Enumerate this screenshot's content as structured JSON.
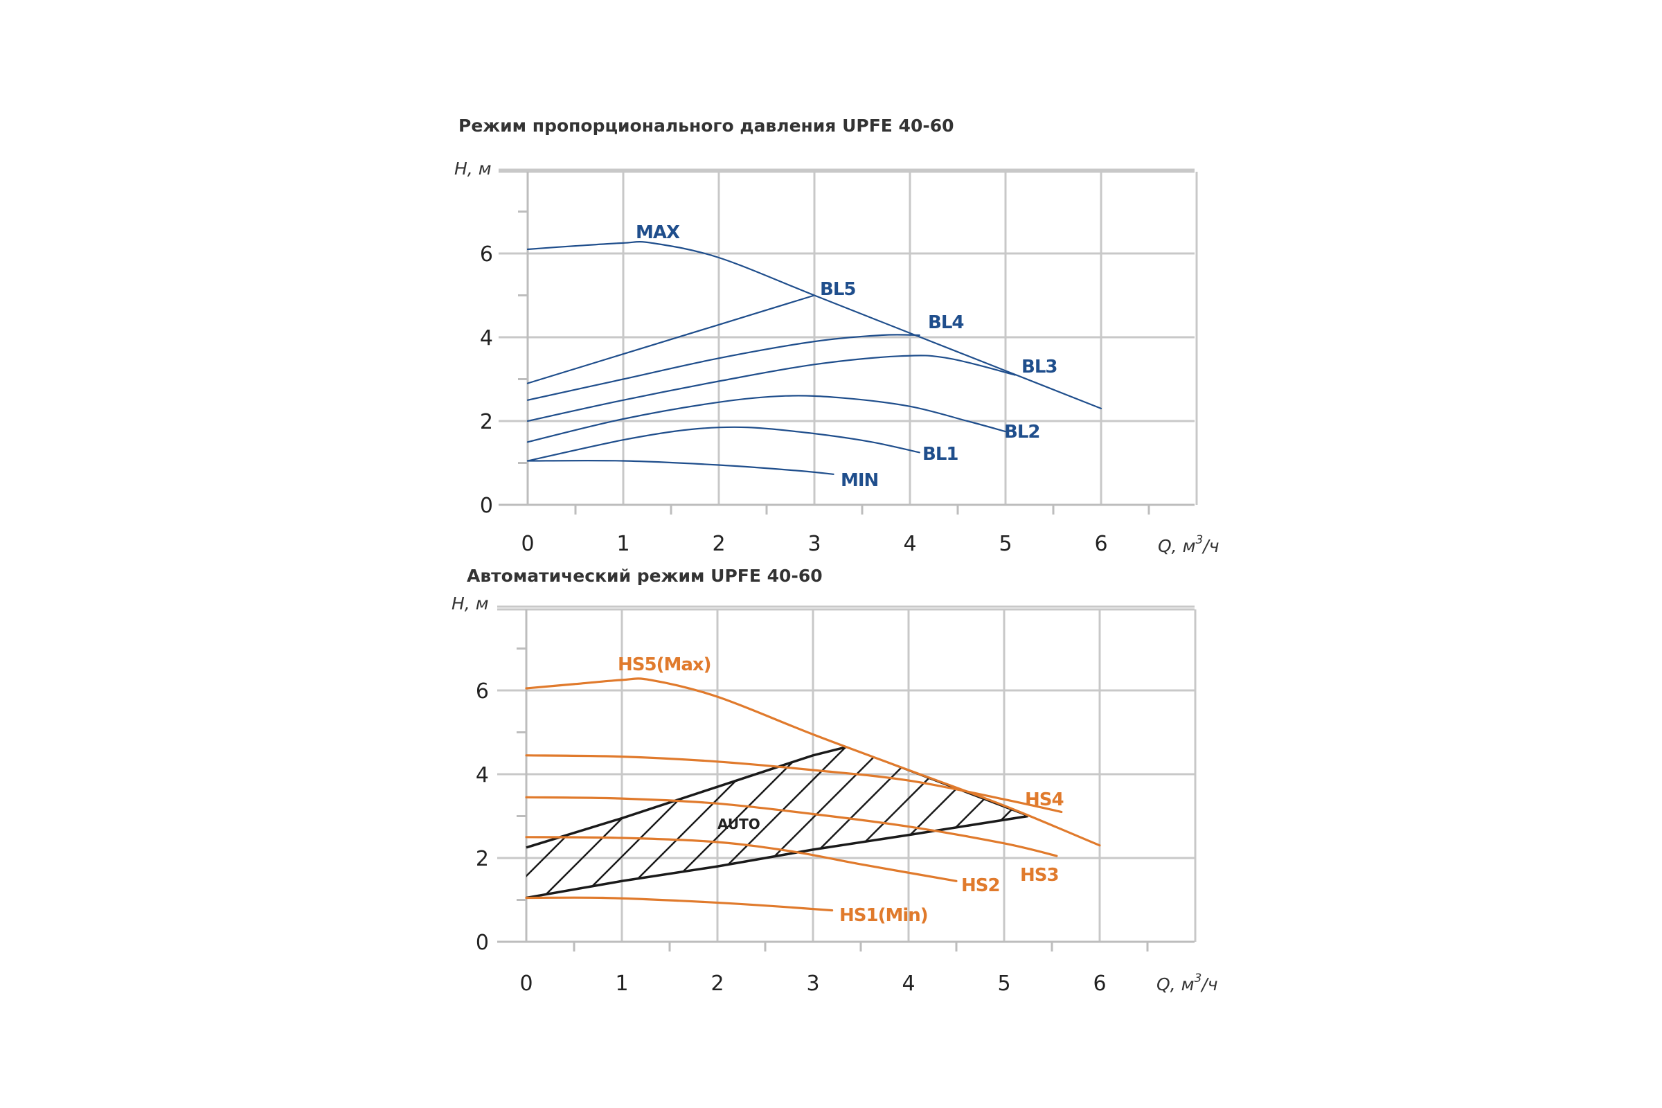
{
  "colors": {
    "blue": "#1f4e8c",
    "orange": "#e07a2c",
    "black": "#1a1a1a",
    "grid": "#c8c8c8",
    "axis": "#bdbdbd"
  },
  "chart_data": [
    {
      "type": "line",
      "title": "Режим пропорционального давления UPFE 40-60",
      "ylabel": "H, м",
      "xlabel_q": "Q, м",
      "xlabel_sup": "3",
      "xlabel_unit": "/ч",
      "xlim": [
        0,
        7
      ],
      "ylim": [
        0,
        8
      ],
      "x_ticks": [
        "0",
        "1",
        "2",
        "3",
        "4",
        "5",
        "6"
      ],
      "y_ticks": [
        "0",
        "2",
        "4",
        "6"
      ],
      "grid": true,
      "series": [
        {
          "name": "MAX",
          "x": [
            0,
            0.5,
            1,
            1.3,
            2,
            3,
            4,
            5,
            6
          ],
          "y": [
            6.1,
            6.18,
            6.25,
            6.25,
            5.9,
            5.0,
            4.1,
            3.2,
            2.3
          ]
        },
        {
          "name": "BL5",
          "x": [
            0,
            1,
            2,
            3
          ],
          "y": [
            2.9,
            3.6,
            4.3,
            5.0
          ]
        },
        {
          "name": "BL4",
          "x": [
            0,
            1,
            2,
            3,
            3.7,
            4.1
          ],
          "y": [
            2.5,
            3.0,
            3.5,
            3.9,
            4.05,
            4.05
          ]
        },
        {
          "name": "BL3",
          "x": [
            0,
            1,
            2,
            3,
            3.9,
            4.4,
            5.1
          ],
          "y": [
            2.0,
            2.5,
            2.95,
            3.35,
            3.55,
            3.5,
            3.1
          ]
        },
        {
          "name": "BL2",
          "x": [
            0,
            1,
            2,
            2.7,
            3.3,
            4,
            4.6,
            5.0
          ],
          "y": [
            1.5,
            2.05,
            2.45,
            2.6,
            2.55,
            2.35,
            2.0,
            1.75
          ]
        },
        {
          "name": "BL1",
          "x": [
            0,
            1,
            1.7,
            2.3,
            3,
            3.6,
            4.1
          ],
          "y": [
            1.05,
            1.55,
            1.8,
            1.85,
            1.7,
            1.5,
            1.25
          ]
        },
        {
          "name": "MIN",
          "x": [
            0,
            1,
            2,
            2.8,
            3.2
          ],
          "y": [
            1.05,
            1.05,
            0.95,
            0.82,
            0.73
          ]
        }
      ]
    },
    {
      "type": "line",
      "title": "Автоматический режим UPFE 40-60",
      "ylabel": "H, м",
      "xlabel_q": "Q, м",
      "xlabel_sup": "3",
      "xlabel_unit": "/ч",
      "xlim": [
        0,
        7
      ],
      "ylim": [
        0,
        8
      ],
      "x_ticks": [
        "0",
        "1",
        "2",
        "3",
        "4",
        "5",
        "6"
      ],
      "y_ticks": [
        "0",
        "2",
        "4",
        "6"
      ],
      "grid": true,
      "region_label": "AUTO",
      "series": [
        {
          "name": "HS5(Max)",
          "x": [
            0,
            0.5,
            1,
            1.3,
            2,
            3,
            4,
            5,
            6
          ],
          "y": [
            6.05,
            6.15,
            6.25,
            6.25,
            5.85,
            4.95,
            4.1,
            3.25,
            2.3
          ]
        },
        {
          "name": "HS4",
          "x": [
            0,
            1,
            2,
            3,
            4,
            5,
            5.6
          ],
          "y": [
            4.45,
            4.42,
            4.3,
            4.1,
            3.85,
            3.4,
            3.1
          ]
        },
        {
          "name": "HS3",
          "x": [
            0,
            1,
            2,
            3,
            4,
            5,
            5.55
          ],
          "y": [
            3.45,
            3.42,
            3.3,
            3.05,
            2.75,
            2.35,
            2.05
          ]
        },
        {
          "name": "HS2",
          "x": [
            0,
            1,
            2,
            2.8,
            3.5,
            4.5
          ],
          "y": [
            2.5,
            2.48,
            2.38,
            2.15,
            1.85,
            1.45
          ]
        },
        {
          "name": "HS1(Min)",
          "x": [
            0,
            0.8,
            1.6,
            2.4,
            3.2
          ],
          "y": [
            1.05,
            1.05,
            0.98,
            0.88,
            0.75
          ]
        }
      ],
      "auto_bounds": {
        "upper": {
          "x": [
            0,
            1,
            2,
            3,
            3.35
          ],
          "y": [
            2.25,
            2.95,
            3.7,
            4.45,
            4.65
          ]
        },
        "lower": {
          "x": [
            0,
            1,
            2,
            3,
            4,
            5.25
          ],
          "y": [
            1.05,
            1.45,
            1.8,
            2.2,
            2.55,
            3.0
          ]
        },
        "left": {
          "x": [
            0,
            0
          ],
          "y": [
            1.05,
            2.25
          ]
        },
        "right_on_max": {
          "x": [
            3.35,
            5.25
          ],
          "y": [
            4.65,
            3.0
          ]
        }
      }
    }
  ]
}
